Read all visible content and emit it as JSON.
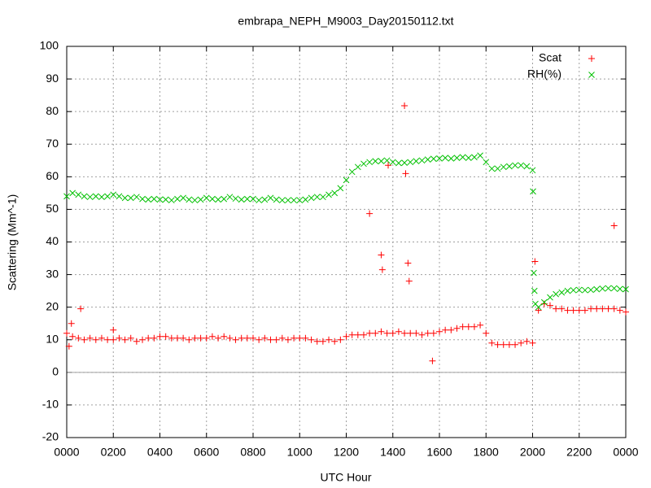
{
  "chart_data": {
    "type": "scatter",
    "title": "embrapa_NEPH_M9003_Day20150112.txt",
    "x_label": "UTC Hour",
    "y_label": "Scattering (Mm^-1)",
    "xlim": [
      0,
      24
    ],
    "ylim": [
      -20,
      100
    ],
    "xticks": [
      {
        "value": 0,
        "label": "0000"
      },
      {
        "value": 2,
        "label": "0200"
      },
      {
        "value": 4,
        "label": "0400"
      },
      {
        "value": 6,
        "label": "0600"
      },
      {
        "value": 8,
        "label": "0800"
      },
      {
        "value": 10,
        "label": "1000"
      },
      {
        "value": 12,
        "label": "1200"
      },
      {
        "value": 14,
        "label": "1400"
      },
      {
        "value": 16,
        "label": "1600"
      },
      {
        "value": 18,
        "label": "1800"
      },
      {
        "value": 20,
        "label": "2000"
      },
      {
        "value": 22,
        "label": "2200"
      },
      {
        "value": 24,
        "label": "0000"
      }
    ],
    "yticks": [
      -20,
      -10,
      0,
      10,
      20,
      30,
      40,
      50,
      60,
      70,
      80,
      90,
      100
    ],
    "grid": true,
    "legend": "top-right",
    "series": [
      {
        "name": "Scat",
        "color": "#ff0000",
        "marker": "plus",
        "x": [
          0,
          0.25,
          0.5,
          0.75,
          1,
          1.25,
          1.5,
          1.75,
          2,
          2.25,
          2.5,
          2.75,
          3,
          3.25,
          3.5,
          3.75,
          4,
          4.25,
          4.5,
          4.75,
          5,
          5.25,
          5.5,
          5.75,
          6,
          6.25,
          6.5,
          6.75,
          7,
          7.25,
          7.5,
          7.75,
          8,
          8.25,
          8.5,
          8.75,
          9,
          9.25,
          9.5,
          9.75,
          10,
          10.25,
          10.5,
          10.75,
          11,
          11.25,
          11.5,
          11.75,
          12,
          12.25,
          12.5,
          12.75,
          13,
          13.25,
          13.5,
          13.75,
          14,
          14.25,
          14.5,
          14.75,
          15,
          15.25,
          15.5,
          15.75,
          16,
          16.25,
          16.5,
          16.75,
          17,
          17.25,
          17.5,
          17.75,
          18,
          18.25,
          18.5,
          18.75,
          19,
          19.25,
          19.5,
          19.75,
          20,
          20.25,
          20.5,
          20.75,
          21,
          21.25,
          21.5,
          21.75,
          22,
          22.25,
          22.5,
          22.75,
          23,
          23.25,
          23.5,
          23.75,
          24,
          0.1,
          0.2,
          0.6,
          2.0,
          13.0,
          13.5,
          13.55,
          13.8,
          14.5,
          14.55,
          14.65,
          14.7,
          15.7,
          20.1,
          23.5
        ],
        "values": [
          12,
          11,
          10.5,
          10,
          10.5,
          10,
          10.5,
          10,
          10,
          10.5,
          10,
          10.5,
          9.5,
          10,
          10.5,
          10.5,
          11,
          11,
          10.5,
          10.5,
          10.5,
          10,
          10.5,
          10.5,
          10.5,
          11,
          10.5,
          11,
          10.5,
          10,
          10.5,
          10.5,
          10.5,
          10,
          10.5,
          10,
          10,
          10.5,
          10,
          10.5,
          10.5,
          10.5,
          10,
          9.5,
          9.5,
          10,
          9.5,
          10,
          11,
          11.5,
          11.5,
          11.5,
          12,
          12,
          12.5,
          12,
          12,
          12.5,
          12,
          12,
          12,
          11.5,
          12,
          12,
          12.5,
          13,
          13,
          13.5,
          14,
          14,
          14,
          14.5,
          12,
          9,
          8.5,
          8.5,
          8.5,
          8.5,
          9,
          9.5,
          9,
          19,
          21,
          20.5,
          19.5,
          19.5,
          19,
          19,
          19,
          19,
          19.5,
          19.5,
          19.5,
          19.5,
          19.5,
          19,
          18.5,
          8,
          15,
          19.5,
          13,
          48.7,
          36,
          31.5,
          63.5,
          81.8,
          61,
          33.5,
          28,
          3.5,
          34,
          45
        ]
      },
      {
        "name": "RH(%)",
        "color": "#00c000",
        "marker": "cross",
        "x": [
          0,
          0.25,
          0.5,
          0.75,
          1,
          1.25,
          1.5,
          1.75,
          2,
          2.25,
          2.5,
          2.75,
          3,
          3.25,
          3.5,
          3.75,
          4,
          4.25,
          4.5,
          4.75,
          5,
          5.25,
          5.5,
          5.75,
          6,
          6.25,
          6.5,
          6.75,
          7,
          7.25,
          7.5,
          7.75,
          8,
          8.25,
          8.5,
          8.75,
          9,
          9.25,
          9.5,
          9.75,
          10,
          10.25,
          10.5,
          10.75,
          11,
          11.25,
          11.5,
          11.75,
          12,
          12.25,
          12.5,
          12.75,
          13,
          13.25,
          13.5,
          13.75,
          14,
          14.25,
          14.5,
          14.75,
          15,
          15.25,
          15.5,
          15.75,
          16,
          16.25,
          16.5,
          16.75,
          17,
          17.25,
          17.5,
          17.75,
          18,
          18.25,
          18.5,
          18.75,
          19,
          19.25,
          19.5,
          19.75,
          20,
          20.02,
          20.05,
          20.08,
          20.12,
          20.25,
          20.5,
          20.75,
          21,
          21.25,
          21.5,
          21.75,
          22,
          22.25,
          22.5,
          22.75,
          23,
          23.25,
          23.5,
          23.75,
          24
        ],
        "values": [
          54,
          55,
          54.5,
          54,
          53.8,
          54,
          53.8,
          54,
          54.5,
          54,
          53.5,
          53.5,
          53.8,
          53.2,
          53,
          53.2,
          53,
          53,
          52.8,
          53.2,
          53.5,
          53,
          52.8,
          53,
          53.5,
          53.2,
          53,
          53.2,
          53.8,
          53.3,
          53,
          53.2,
          53.2,
          52.8,
          53,
          53.5,
          53,
          52.8,
          52.8,
          52.8,
          52.8,
          53,
          53.5,
          53.8,
          53.8,
          54.5,
          55,
          56.5,
          59,
          61.5,
          63,
          64,
          64.5,
          64.8,
          64.8,
          65,
          64.5,
          64.2,
          64.3,
          64.5,
          64.8,
          65,
          65.3,
          65.5,
          65.6,
          65.8,
          65.6,
          65.8,
          66,
          65.8,
          66,
          66.5,
          64.5,
          62.5,
          62.5,
          63,
          63.2,
          63.5,
          63.5,
          63.2,
          62,
          55.5,
          30.5,
          25,
          21,
          20,
          21.5,
          23,
          24,
          24.5,
          25,
          25.2,
          25.3,
          25.2,
          25.3,
          25.5,
          25.7,
          25.8,
          25.8,
          25.6,
          25.5
        ]
      }
    ]
  }
}
